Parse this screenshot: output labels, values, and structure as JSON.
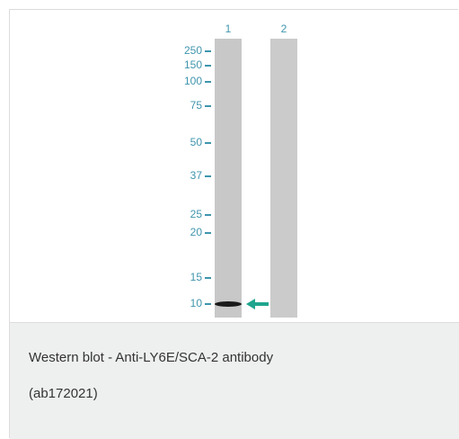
{
  "figure": {
    "lanes": [
      "1",
      "2"
    ],
    "markers": [
      "250",
      "150",
      "100",
      "75",
      "50",
      "37",
      "25",
      "20",
      "15",
      "10"
    ]
  },
  "caption": {
    "lines": [
      "Western blot - Anti-LY6E/SCA-2 antibody",
      "(ab172021)"
    ]
  }
}
